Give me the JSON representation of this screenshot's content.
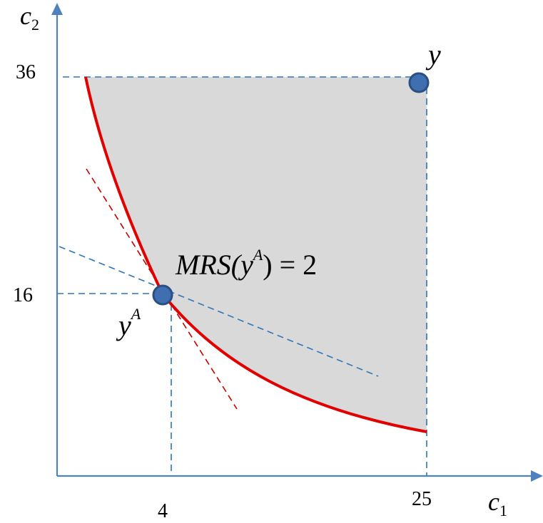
{
  "diagram": {
    "axes": {
      "x": {
        "symbol": "c",
        "subscript": "1"
      },
      "y": {
        "symbol": "c",
        "subscript": "2"
      }
    },
    "ticks": {
      "x": [
        {
          "value": 4,
          "label": "4"
        },
        {
          "value": 25,
          "label": "25"
        }
      ],
      "y": [
        {
          "value": 16,
          "label": "16"
        },
        {
          "value": 36,
          "label": "36"
        }
      ]
    },
    "points": [
      {
        "id": "y",
        "label": "y",
        "superscript": "",
        "c1": 25,
        "c2": 36
      },
      {
        "id": "yA",
        "label": "y",
        "superscript": "A",
        "c1": 4,
        "c2": 16
      }
    ],
    "annotation": {
      "prefix": "MRS(",
      "var": "y",
      "superscript": "A",
      "suffix": ") = 2"
    },
    "colors": {
      "axis": "#4f81bd",
      "curve": "#e00000",
      "tangent": "#c00000",
      "guide": "#2e75b6",
      "shade": "#d9d9d9",
      "point_fill": "#3f6fb0",
      "point_stroke": "#2a4f80"
    }
  }
}
